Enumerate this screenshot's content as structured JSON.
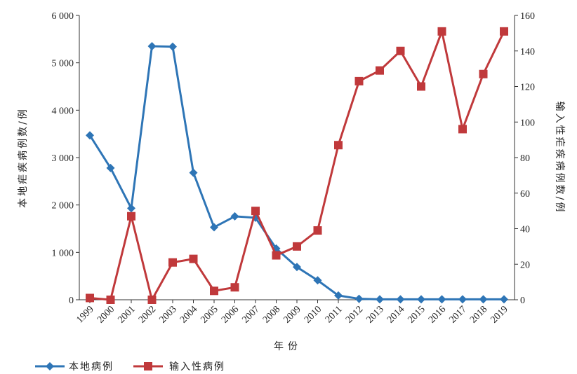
{
  "chart_data": {
    "type": "line",
    "x": [
      "1999",
      "2000",
      "2001",
      "2002",
      "2003",
      "2004",
      "2005",
      "2006",
      "2007",
      "2008",
      "2009",
      "2010",
      "2011",
      "2012",
      "2013",
      "2014",
      "2015",
      "2016",
      "2017",
      "2018",
      "2019"
    ],
    "xlabel": "年份",
    "ylabel_left": "本地疟疾病例数/例",
    "ylabel_right": "输入性疟疾病例数/例",
    "ylim_left": [
      0,
      6000
    ],
    "ylim_right": [
      0,
      160
    ],
    "yticks_left": [
      "0",
      "1 000",
      "2 000",
      "3 000",
      "4 000",
      "5 000",
      "6 000"
    ],
    "yticks_right": [
      "0",
      "20",
      "40",
      "60",
      "80",
      "100",
      "120",
      "140",
      "160"
    ],
    "grid": false,
    "legend_position": "bottom-left",
    "series": [
      {
        "name": "本地病例",
        "axis": "left",
        "color": "#2e75b6",
        "marker": "diamond",
        "values": [
          3470,
          2780,
          1930,
          5350,
          5340,
          2680,
          1530,
          1760,
          1730,
          1080,
          690,
          410,
          90,
          20,
          10,
          10,
          10,
          10,
          10,
          10,
          10
        ]
      },
      {
        "name": "输入性病例",
        "axis": "right",
        "color": "#c0393b",
        "marker": "square",
        "values": [
          1,
          0,
          47,
          0,
          21,
          23,
          5,
          7,
          50,
          25,
          30,
          39,
          87,
          123,
          129,
          140,
          120,
          151,
          96,
          127,
          151
        ]
      }
    ]
  }
}
